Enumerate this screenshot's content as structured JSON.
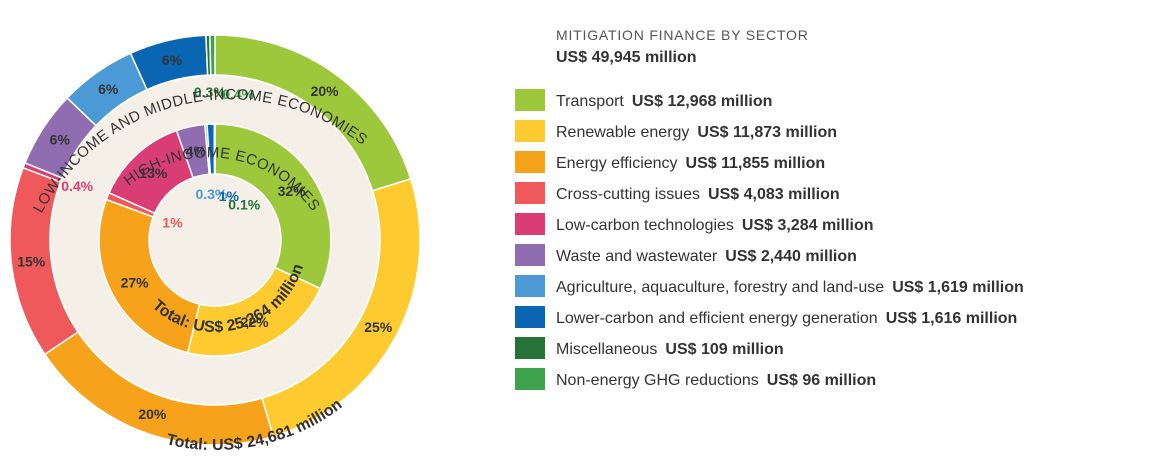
{
  "chart_data": {
    "type": "nested-donut",
    "title": "MITIGATION FINANCE BY SECTOR",
    "subtitle": "US$ 49,945 million",
    "categories": [
      "Transport",
      "Renewable energy",
      "Energy efficiency",
      "Cross-cutting issues",
      "Low-carbon technologies",
      "Waste and wastewater",
      "Agriculture, aquaculture, forestry and land-use",
      "Lower-carbon and efficient energy generation",
      "Miscellaneous",
      "Non-energy GHG reductions"
    ],
    "colors": [
      "#9dc83c",
      "#fdcb2f",
      "#f6a31b",
      "#f0595c",
      "#d83d73",
      "#8f6db0",
      "#4b9ad6",
      "#0a66b3",
      "#267337",
      "#3fa34d"
    ],
    "legend_amounts": [
      "US$ 12,968 million",
      "US$ 11,873 million",
      "US$ 11,855 million",
      "US$ 4,083 million",
      "US$ 3,284 million",
      "US$ 2,440 million",
      "US$ 1,619 million",
      "US$ 1,616 million",
      "US$ 109 million",
      "US$ 96 million"
    ],
    "series": [
      {
        "name": "HIGH-INCOME ECONOMIES",
        "total_label": "Total: US$ 25,264 million",
        "values": [
          32,
          22,
          27,
          1,
          13,
          4,
          0.3,
          1,
          0.1,
          null
        ],
        "value_labels": [
          "32%",
          "22%",
          "27%",
          "1%",
          "13%",
          "4%",
          "0.3%",
          "1%",
          "0.1%",
          null
        ]
      },
      {
        "name": "LOW-INCOME AND MIDDLE-INCOME ECONOMIES",
        "total_label": "Total: US$ 24,681 million",
        "values": [
          20,
          25,
          20,
          15,
          0.4,
          6,
          6,
          6,
          0.3,
          0.4
        ],
        "value_labels": [
          "20%",
          "25%",
          "20%",
          "15%",
          "0.4%",
          "6%",
          "6%",
          "6%",
          "0.3%",
          "0.4%"
        ]
      }
    ]
  }
}
